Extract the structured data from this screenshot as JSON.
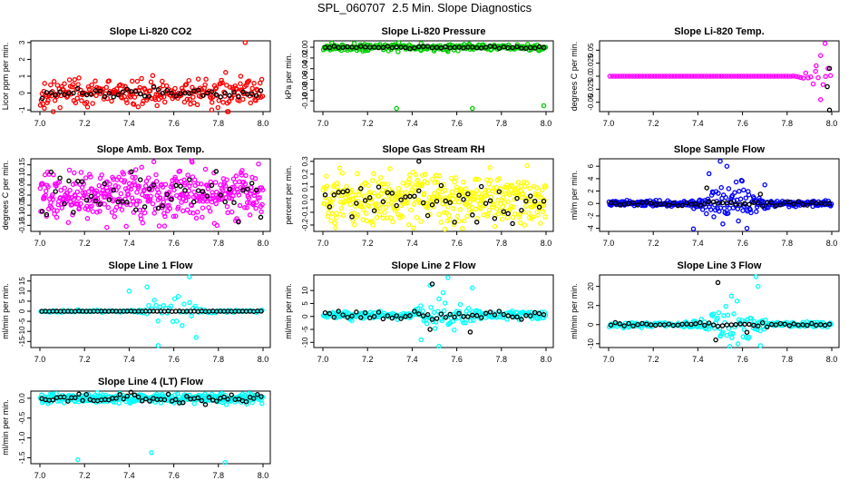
{
  "figure": {
    "title": "SPL_060707  2.5 Min. Slope Diagnostics"
  },
  "chart_data": [
    {
      "type": "scatter",
      "title": "Slope Li-820 CO2",
      "ylabel": "Licor ppm per min.",
      "xlim": [
        7.0,
        8.0
      ],
      "ylim": [
        -1.1,
        3.1
      ],
      "x_ticks": [
        "7.0",
        "7.2",
        "7.4",
        "7.6",
        "7.8",
        "8.0"
      ],
      "y_ticks": [
        {
          "v": -1,
          "label": "-1"
        },
        {
          "v": 0,
          "label": "0"
        },
        {
          "v": 1,
          "label": "1"
        },
        {
          "v": 2,
          "label": "2"
        },
        {
          "v": 3,
          "label": "3"
        }
      ],
      "series": [
        {
          "name": "slope",
          "color": "#ff0000",
          "base": 0,
          "spread": 0.4,
          "n": 260,
          "seed": 11,
          "spike_center": 7.85,
          "spike_width": 0.1,
          "spike_mult": 2.2,
          "outliers": [
            [
              7.92,
              3.0
            ],
            [
              7.77,
              -1.0
            ],
            [
              7.02,
              -0.9
            ],
            [
              7.9,
              1.0
            ],
            [
              7.84,
              -0.6
            ]
          ]
        },
        {
          "name": "mean",
          "color": "#000000",
          "base": 0,
          "spread": 0.15,
          "n": 50,
          "seed": 12,
          "outliers": []
        }
      ]
    },
    {
      "type": "scatter",
      "title": "Slope Li-820 Pressure",
      "ylabel": "kPa per min.",
      "xlim": [
        7.0,
        8.0
      ],
      "ylim": [
        -0.12,
        0.012
      ],
      "x_ticks": [
        "7.0",
        "7.2",
        "7.4",
        "7.6",
        "7.8",
        "8.0"
      ],
      "y_ticks": [
        {
          "v": -0.1,
          "label": "-0.10"
        },
        {
          "v": -0.08,
          "label": "-0.08"
        },
        {
          "v": -0.06,
          "label": "-0.06"
        },
        {
          "v": -0.04,
          "label": "-0.04"
        },
        {
          "v": -0.02,
          "label": "-0.02"
        },
        {
          "v": 0,
          "label": "0.00"
        }
      ],
      "series": [
        {
          "name": "slope",
          "color": "#00cc00",
          "base": 0,
          "spread": 0.003,
          "n": 260,
          "seed": 21,
          "outliers": [
            [
              7.33,
              -0.114
            ],
            [
              7.67,
              -0.114
            ],
            [
              7.99,
              -0.109
            ],
            [
              7.04,
              0.008
            ],
            [
              7.56,
              -0.008
            ],
            [
              7.44,
              -0.006
            ]
          ]
        },
        {
          "name": "mean",
          "color": "#000000",
          "base": 0,
          "spread": 0.001,
          "n": 50,
          "seed": 22,
          "outliers": []
        }
      ]
    },
    {
      "type": "scatter",
      "title": "Slope Li-820 Temp.",
      "ylabel": "degrees C per min.",
      "xlim": [
        7.0,
        8.0
      ],
      "ylim": [
        -0.068,
        0.068
      ],
      "x_ticks": [
        "7.0",
        "7.2",
        "7.4",
        "7.6",
        "7.8",
        "8.0"
      ],
      "y_ticks": [
        {
          "v": -0.05,
          "label": "-0.05"
        },
        {
          "v": -0.025,
          "label": "-0.025"
        },
        {
          "v": 0,
          "label": "0.0"
        },
        {
          "v": 0.025,
          "label": "0.025"
        },
        {
          "v": 0.05,
          "label": "0.05"
        }
      ],
      "series": [
        {
          "name": "slope",
          "color": "#ff00ff",
          "base": 0,
          "spread": 0,
          "n": 90,
          "seed": 31,
          "spike_center": 7.96,
          "spike_width": 0.06,
          "spike_mult": 1,
          "spike_amp": 0.03,
          "outliers": [
            [
              7.97,
              0.063
            ],
            [
              7.95,
              -0.045
            ],
            [
              7.93,
              0.02
            ]
          ]
        },
        {
          "name": "mean",
          "color": "#000000",
          "base": 0,
          "spread": 0,
          "n": 0,
          "seed": 32,
          "outliers": [
            [
              7.99,
              -0.065
            ],
            [
              7.98,
              -0.02
            ],
            [
              7.99,
              0.015
            ]
          ]
        }
      ]
    },
    {
      "type": "scatter",
      "title": "Slope Amb. Box Temp.",
      "ylabel": "degrees C per min.",
      "xlim": [
        7.0,
        8.0
      ],
      "ylim": [
        -0.18,
        0.18
      ],
      "x_ticks": [
        "7.0",
        "7.2",
        "7.4",
        "7.6",
        "7.8",
        "8.0"
      ],
      "y_ticks": [
        {
          "v": -0.15,
          "label": "-0.15"
        },
        {
          "v": -0.1,
          "label": "-0.10"
        },
        {
          "v": -0.05,
          "label": "-0.05"
        },
        {
          "v": 0,
          "label": "0.00"
        },
        {
          "v": 0.05,
          "label": "0.05"
        },
        {
          "v": 0.1,
          "label": "0.10"
        },
        {
          "v": 0.15,
          "label": "0.15"
        }
      ],
      "series": [
        {
          "name": "slope",
          "color": "#ff00ff",
          "base": 0,
          "spread": 0.06,
          "n": 420,
          "seed": 41,
          "outliers": [
            [
              7.68,
              0.17
            ],
            [
              7.3,
              -0.16
            ]
          ]
        },
        {
          "name": "mean",
          "color": "#000000",
          "base": 0,
          "spread": 0.055,
          "n": 50,
          "seed": 42,
          "outliers": []
        }
      ]
    },
    {
      "type": "scatter",
      "title": "Slope Gas Stream RH",
      "ylabel": "percent per min.",
      "xlim": [
        7.0,
        8.0
      ],
      "ylim": [
        -0.25,
        0.32
      ],
      "x_ticks": [
        "7.0",
        "7.2",
        "7.4",
        "7.6",
        "7.8",
        "8.0"
      ],
      "y_ticks": [
        {
          "v": -0.2,
          "label": "-0.2"
        },
        {
          "v": -0.1,
          "label": "-0.1"
        },
        {
          "v": 0,
          "label": "0.0"
        },
        {
          "v": 0.1,
          "label": "0.1"
        },
        {
          "v": 0.2,
          "label": "0.2"
        },
        {
          "v": 0.3,
          "label": "0.3"
        }
      ],
      "series": [
        {
          "name": "slope",
          "color": "#ffff00",
          "base": 0,
          "spread": 0.1,
          "n": 420,
          "seed": 51,
          "outliers": []
        },
        {
          "name": "mean",
          "color": "#000000",
          "base": 0,
          "spread": 0.08,
          "n": 50,
          "seed": 52,
          "outliers": [
            [
              7.43,
              0.3
            ]
          ]
        }
      ]
    },
    {
      "type": "scatter",
      "title": "Slope Sample Flow",
      "ylabel": "ml/m per min.",
      "xlim": [
        7.0,
        8.0
      ],
      "ylim": [
        -4.5,
        7.2
      ],
      "x_ticks": [
        "7.0",
        "7.2",
        "7.4",
        "7.6",
        "7.8",
        "8.0"
      ],
      "y_ticks": [
        {
          "v": -4,
          "label": "-4"
        },
        {
          "v": -2,
          "label": "-2"
        },
        {
          "v": 0,
          "label": "0"
        },
        {
          "v": 2,
          "label": "2"
        },
        {
          "v": 4,
          "label": "4"
        },
        {
          "v": 6,
          "label": "6"
        }
      ],
      "series": [
        {
          "name": "slope",
          "color": "#0000ff",
          "base": 0,
          "spread": 0.25,
          "n": 300,
          "seed": 61,
          "spike_center": 7.55,
          "spike_width": 0.12,
          "spike_mult": 8,
          "outliers": [
            [
              7.5,
              6.8
            ],
            [
              7.53,
              6.0
            ],
            [
              7.38,
              -4.1
            ],
            [
              7.62,
              -4.0
            ],
            [
              7.45,
              4.8
            ],
            [
              7.7,
              3.0
            ]
          ]
        },
        {
          "name": "mean",
          "color": "#000000",
          "base": 0,
          "spread": 0.2,
          "n": 50,
          "seed": 62,
          "outliers": [
            [
              7.44,
              2.5
            ],
            [
              7.68,
              1.5
            ]
          ]
        }
      ]
    },
    {
      "type": "scatter",
      "title": "Slope Line 1 Flow",
      "ylabel": "ml/min per min.",
      "xlim": [
        7.0,
        8.0
      ],
      "ylim": [
        -18,
        18
      ],
      "x_ticks": [
        "7.0",
        "7.2",
        "7.4",
        "7.6",
        "7.8",
        "8.0"
      ],
      "y_ticks": [
        {
          "v": -15,
          "label": "-15"
        },
        {
          "v": -10,
          "label": "-10"
        },
        {
          "v": -5,
          "label": "-5"
        },
        {
          "v": 0,
          "label": "0"
        },
        {
          "v": 5,
          "label": "5"
        },
        {
          "v": 10,
          "label": "10"
        },
        {
          "v": 15,
          "label": "15"
        }
      ],
      "series": [
        {
          "name": "slope",
          "color": "#00ffff",
          "base": 0,
          "spread": 0.3,
          "n": 120,
          "seed": 71,
          "spike_center": 7.6,
          "spike_width": 0.1,
          "spike_mult": 16,
          "outliers": [
            [
              7.53,
              -17
            ],
            [
              7.4,
              10
            ],
            [
              7.67,
              17
            ],
            [
              7.48,
              12
            ],
            [
              7.7,
              -13
            ]
          ]
        },
        {
          "name": "mean",
          "color": "#000000",
          "base": 0,
          "spread": 0.05,
          "n": 60,
          "seed": 72,
          "outliers": []
        }
      ]
    },
    {
      "type": "scatter",
      "title": "Slope Line 2 Flow",
      "ylabel": "ml/min per min.",
      "xlim": [
        7.0,
        8.0
      ],
      "ylim": [
        -12,
        16
      ],
      "x_ticks": [
        "7.0",
        "7.2",
        "7.4",
        "7.6",
        "7.8",
        "8.0"
      ],
      "y_ticks": [
        {
          "v": -10,
          "label": "-10"
        },
        {
          "v": -5,
          "label": "-5"
        },
        {
          "v": 0,
          "label": "0"
        },
        {
          "v": 5,
          "label": "5"
        },
        {
          "v": 10,
          "label": "10"
        }
      ],
      "series": [
        {
          "name": "slope",
          "color": "#00ffff",
          "base": 0.5,
          "spread": 0.8,
          "n": 220,
          "seed": 81,
          "spike_center": 7.55,
          "spike_width": 0.1,
          "spike_mult": 6,
          "outliers": [
            [
              7.56,
              15
            ],
            [
              7.48,
              12
            ],
            [
              7.52,
              -11.5
            ],
            [
              7.67,
              11
            ],
            [
              7.44,
              -9
            ]
          ]
        },
        {
          "name": "mean",
          "color": "#000000",
          "base": 0.5,
          "spread": 0.8,
          "n": 50,
          "seed": 82,
          "outliers": [
            [
              7.49,
              12.5
            ],
            [
              7.48,
              -5
            ],
            [
              7.66,
              -6
            ]
          ]
        }
      ]
    },
    {
      "type": "scatter",
      "title": "Slope Line 3 Flow",
      "ylabel": "ml/min per min.",
      "xlim": [
        7.0,
        8.0
      ],
      "ylim": [
        -12,
        26
      ],
      "x_ticks": [
        "7.0",
        "7.2",
        "7.4",
        "7.6",
        "7.8",
        "8.0"
      ],
      "y_ticks": [
        {
          "v": -10,
          "label": "-10"
        },
        {
          "v": 0,
          "label": "0"
        },
        {
          "v": 10,
          "label": "10"
        },
        {
          "v": 20,
          "label": "20"
        }
      ],
      "series": [
        {
          "name": "slope",
          "color": "#00ffff",
          "base": 0,
          "spread": 0.7,
          "n": 220,
          "seed": 91,
          "spike_center": 7.55,
          "spike_width": 0.12,
          "spike_mult": 10,
          "outliers": [
            [
              7.66,
              25
            ],
            [
              7.68,
              -11
            ],
            [
              7.55,
              15
            ],
            [
              7.67,
              20
            ],
            [
              7.5,
              -6
            ]
          ]
        },
        {
          "name": "mean",
          "color": "#000000",
          "base": 0,
          "spread": 0.6,
          "n": 50,
          "seed": 92,
          "outliers": [
            [
              7.49,
              22
            ],
            [
              7.48,
              -8
            ],
            [
              7.62,
              -4
            ]
          ]
        }
      ]
    },
    {
      "type": "scatter",
      "title": "Slope Line 4 (LT) Flow",
      "ylabel": "ml/min per min.",
      "xlim": [
        7.0,
        8.0
      ],
      "ylim": [
        -1.65,
        0.18
      ],
      "x_ticks": [
        "7.0",
        "7.2",
        "7.4",
        "7.6",
        "7.8",
        "8.0"
      ],
      "y_ticks": [
        {
          "v": -1.5,
          "label": "-1.5"
        },
        {
          "v": -1.0,
          "label": "-1.0"
        },
        {
          "v": -0.5,
          "label": "-0.5"
        },
        {
          "v": 0,
          "label": "0.0"
        }
      ],
      "series": [
        {
          "name": "slope",
          "color": "#00ffff",
          "base": 0,
          "spread": 0.06,
          "n": 320,
          "seed": 101,
          "outliers": [
            [
              7.17,
              -1.55
            ],
            [
              7.5,
              -1.37
            ],
            [
              7.83,
              -1.62
            ]
          ]
        },
        {
          "name": "mean",
          "color": "#000000",
          "base": 0,
          "spread": 0.06,
          "n": 60,
          "seed": 102,
          "outliers": []
        }
      ]
    }
  ]
}
